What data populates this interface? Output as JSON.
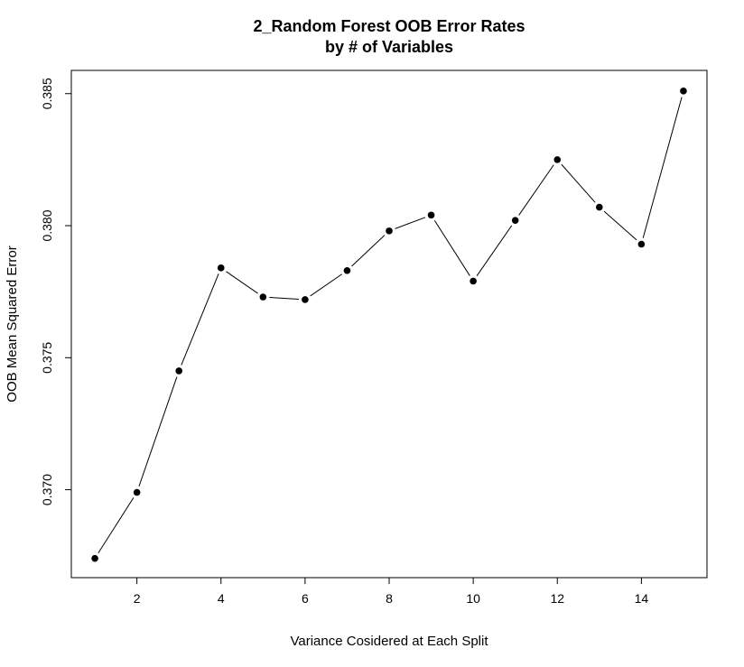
{
  "chart_data": {
    "type": "line",
    "title": "2_Random Forest OOB Error Rates",
    "subtitle": "by # of Variables",
    "xlabel": "Variance Cosidered at Each Split",
    "ylabel": "OOB Mean Squared Error",
    "x": [
      1,
      2,
      3,
      4,
      5,
      6,
      7,
      8,
      9,
      10,
      11,
      12,
      13,
      14,
      15
    ],
    "series": [
      {
        "values": [
          0.3674,
          0.3699,
          0.3745,
          0.3784,
          0.3773,
          0.3772,
          0.3783,
          0.3798,
          0.3804,
          0.3779,
          0.3802,
          0.3825,
          0.3807,
          0.3793,
          0.3851
        ]
      }
    ],
    "xticks": [
      2,
      4,
      6,
      8,
      10,
      12,
      14
    ],
    "xtick_labels": [
      "2",
      "4",
      "6",
      "8",
      "10",
      "12",
      "14"
    ],
    "yticks": [
      0.37,
      0.375,
      0.38,
      0.385
    ],
    "ytick_labels": [
      "0.370",
      "0.375",
      "0.380",
      "0.385"
    ],
    "xlim": [
      0.44,
      15.56
    ],
    "ylim": [
      0.36667,
      0.38588
    ],
    "grid": false,
    "legend": "none",
    "line_color": "#000000",
    "point_color": "#000000"
  }
}
